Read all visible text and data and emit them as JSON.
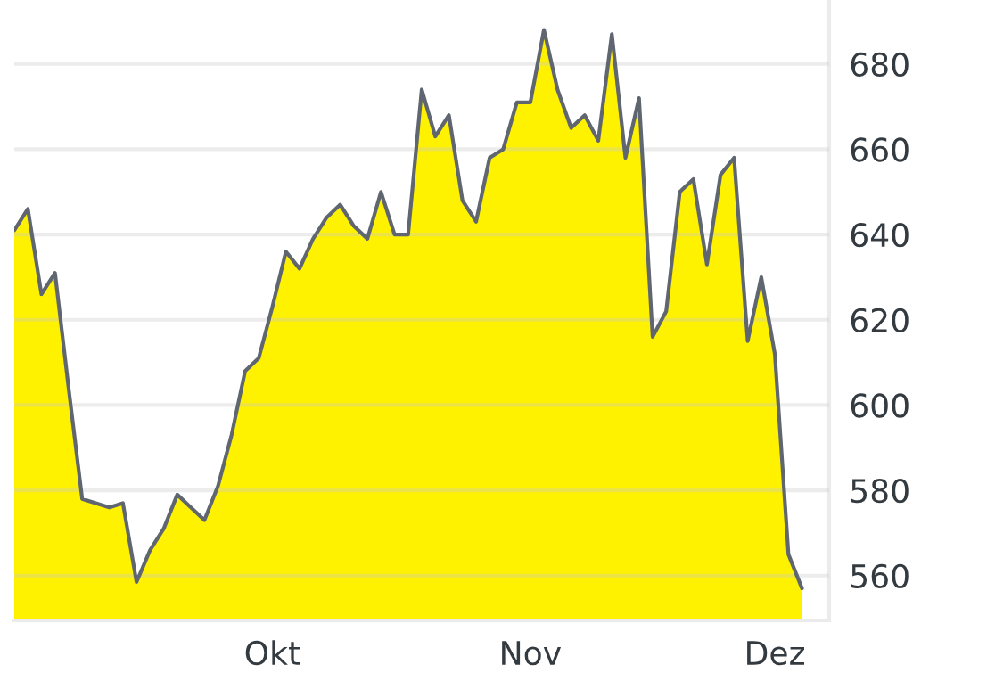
{
  "chart_data": {
    "type": "area",
    "categories": [
      null,
      null,
      null,
      null,
      null,
      null,
      null,
      null,
      null,
      null,
      null,
      null,
      null,
      null,
      null,
      null,
      null,
      null,
      null,
      "Okt",
      null,
      null,
      null,
      null,
      null,
      null,
      null,
      null,
      null,
      null,
      null,
      null,
      null,
      null,
      null,
      null,
      null,
      null,
      "Nov",
      null,
      null,
      null,
      null,
      null,
      null,
      null,
      null,
      null,
      null,
      null,
      null,
      null,
      null,
      null,
      null,
      null,
      "Dez",
      null,
      null
    ],
    "series": [
      {
        "color": "#fff200",
        "values": [
          641,
          646,
          626,
          631,
          604,
          578,
          577,
          576,
          577,
          558.5,
          566,
          571,
          579,
          576,
          573,
          581,
          593,
          608,
          611,
          623,
          636,
          632,
          639,
          644,
          647,
          642,
          639,
          650,
          640,
          640,
          674,
          663,
          668,
          648,
          643,
          658,
          660,
          671,
          671,
          688,
          674,
          665,
          668,
          662,
          687,
          658,
          672,
          616,
          622,
          650,
          653,
          633,
          654,
          658,
          615,
          630,
          612,
          565,
          557
        ]
      }
    ],
    "ylim": [
      549.5,
      695
    ],
    "yticks": [
      560,
      580,
      600,
      620,
      640,
      660,
      680
    ],
    "grid": "y"
  }
}
